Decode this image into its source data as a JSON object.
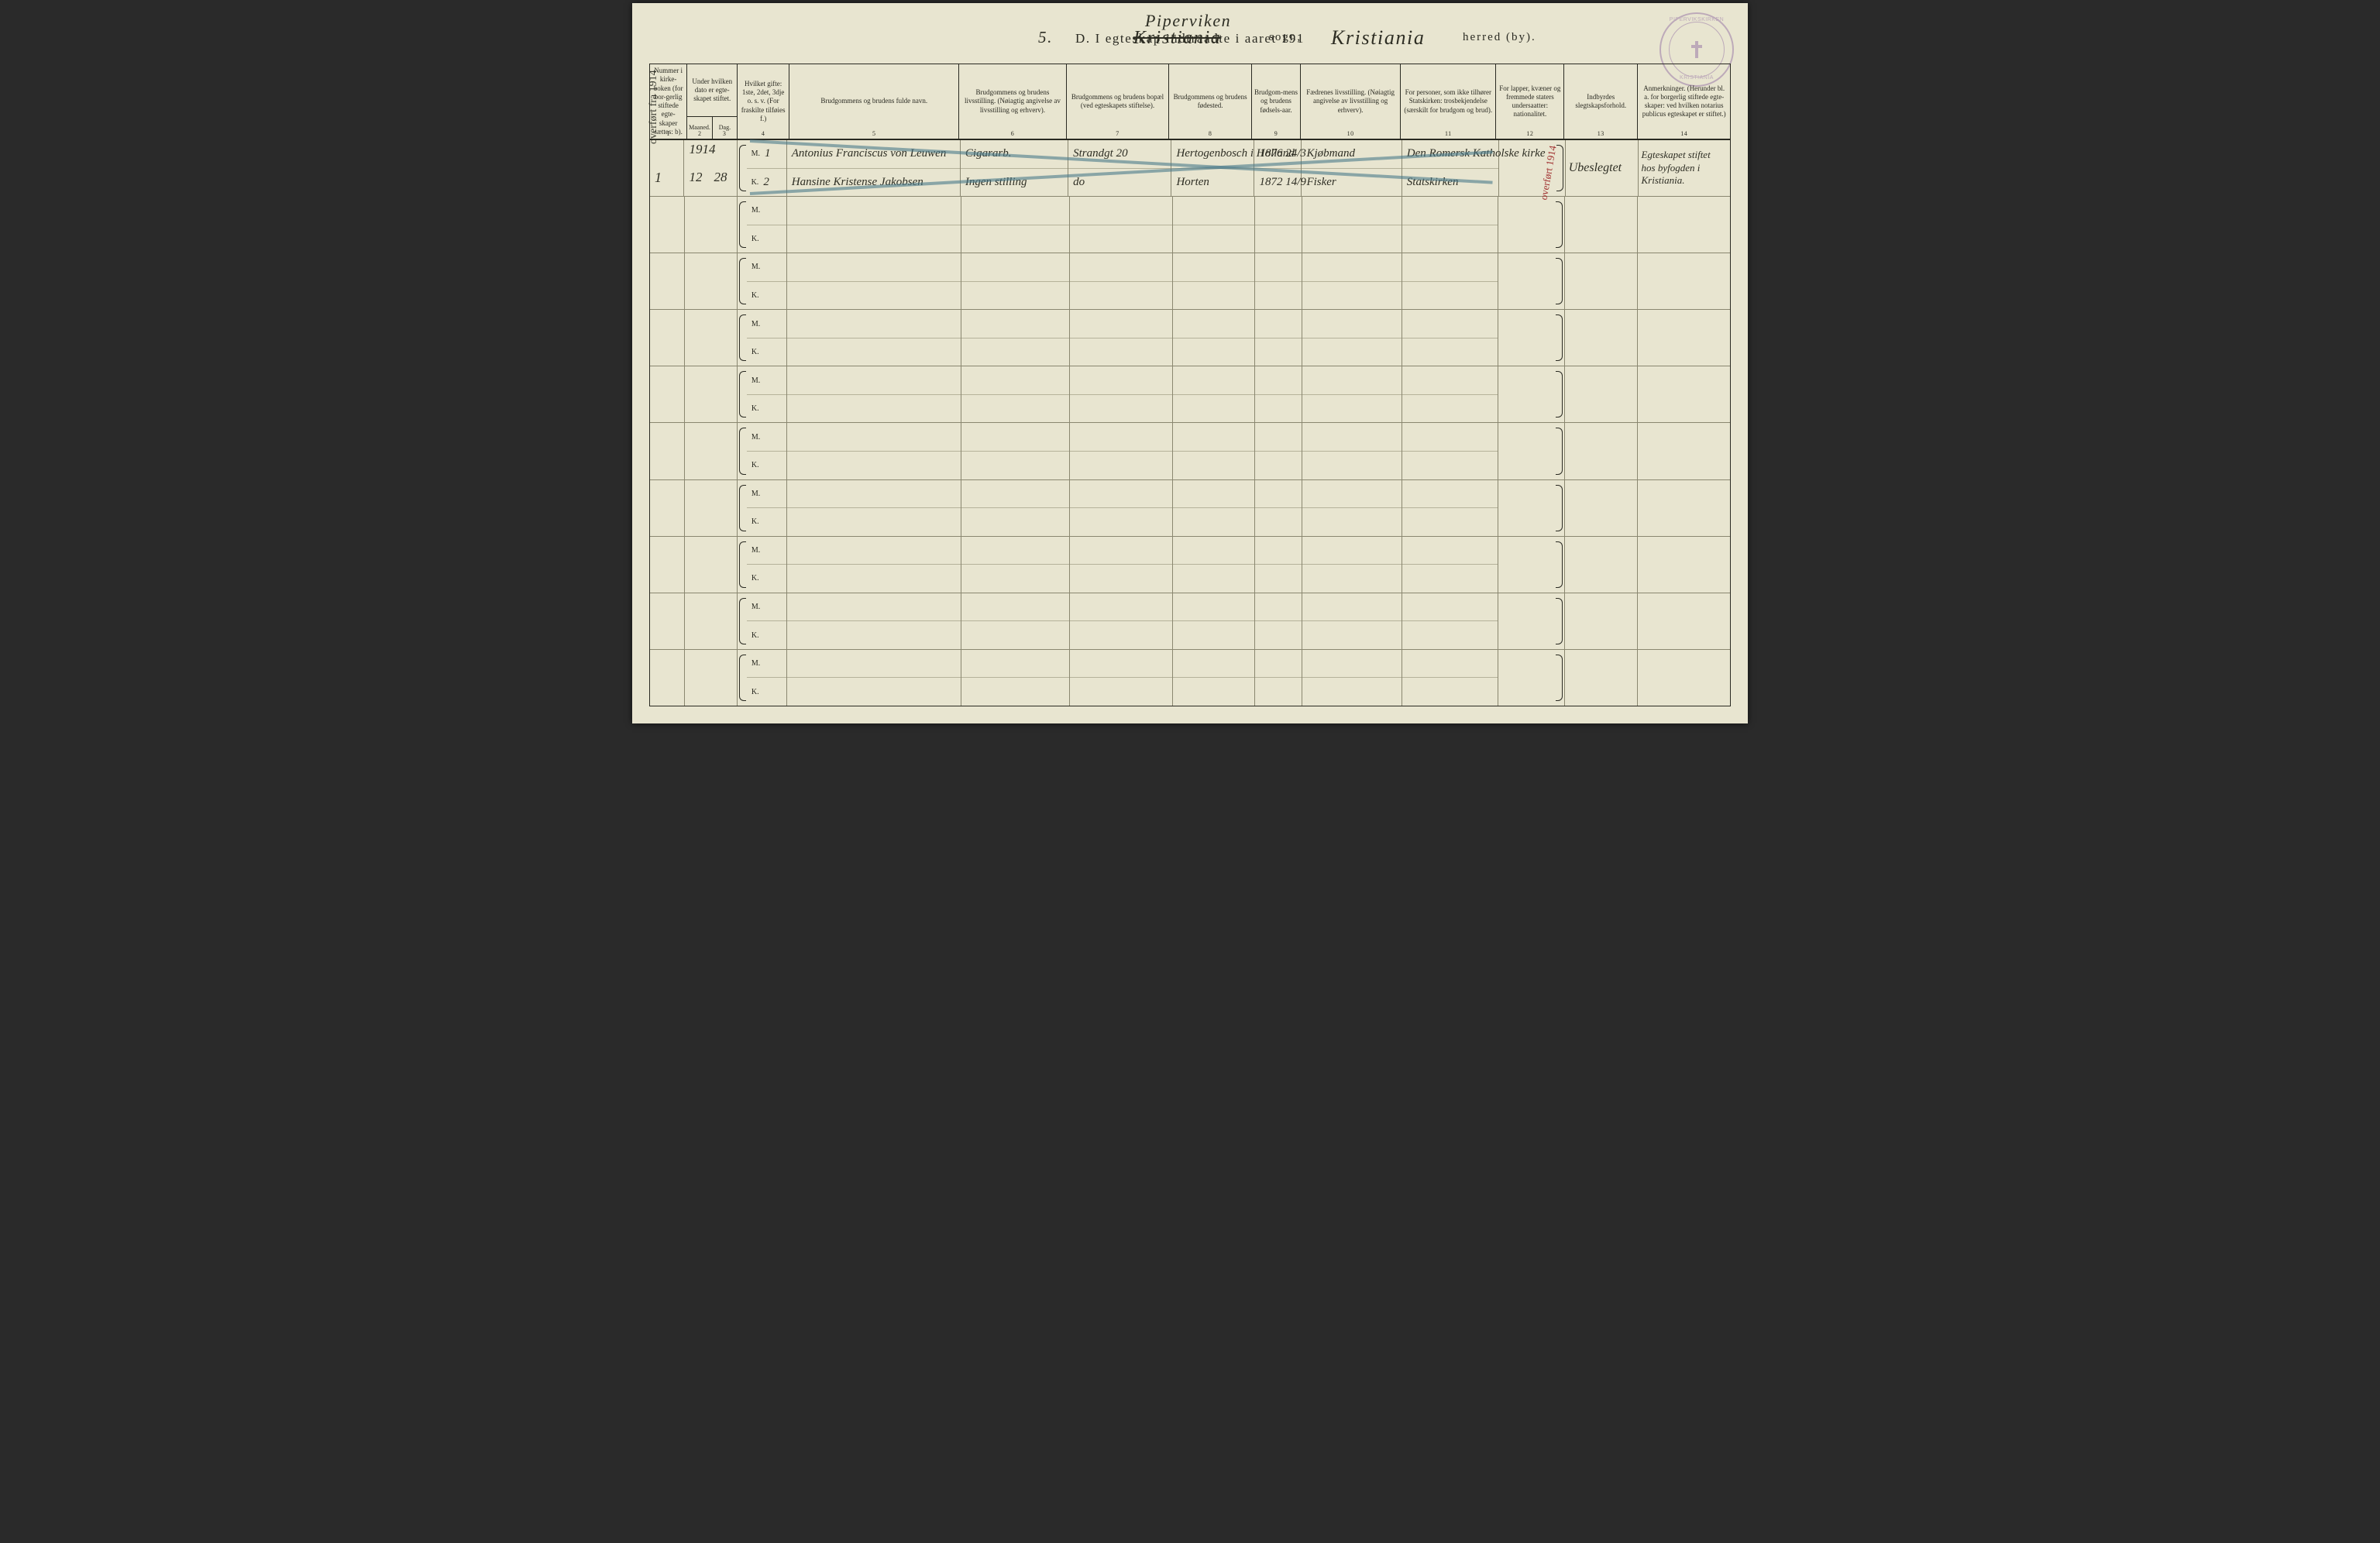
{
  "colors": {
    "paper": "#e8e5d0",
    "ink": "#2a2a22",
    "rule_light": "#8a8770",
    "strike": "#4a7a8a",
    "stamp": "#9a7aa8",
    "red_note": "#a03030"
  },
  "title": {
    "printed_prefix": "D.   I egteskap indtraadte i aaret 191",
    "year_suffix_hand": "5.",
    "parish_line1_hand": "Piperviken",
    "sogn_hand_struck": "Kristiania",
    "sogn_label": "sogn,",
    "herred_hand": "Kristiania",
    "herred_label": "herred (by)."
  },
  "stamp": {
    "top_text": "PIPERVIKSKIRKEN",
    "bottom_text": "KRISTIANIA"
  },
  "margin_note": "overført fra 1914",
  "columns": [
    {
      "num": "1",
      "label": "Nummer i kirke-boken (for bor-gerlig stiftede egte-skaper sættes: b).",
      "w": "w1"
    },
    {
      "num": "2",
      "label_top": "Under hvilken dato er egte-skapet stiftet.",
      "sub_a": "Maaned.",
      "sub_b": "Dag.",
      "w": "w2"
    },
    {
      "num": "3",
      "label": "",
      "w": "w3"
    },
    {
      "num": "4",
      "label": "Hvilket gifte: 1ste, 2det, 3dje o. s. v. (For fraskilte tilføies f.)",
      "w": "w4"
    },
    {
      "num": "5",
      "label": "Brudgommens og brudens fulde navn.",
      "w": "w5"
    },
    {
      "num": "6",
      "label": "Brudgommens og brudens livsstilling. (Nøiagtig angivelse av livsstilling og erhverv).",
      "w": "w6"
    },
    {
      "num": "7",
      "label": "Brudgommens og brudens bopæl (ved egteskapets stiftelse).",
      "w": "w7"
    },
    {
      "num": "8",
      "label": "Brudgommens og brudens fødested.",
      "w": "w8"
    },
    {
      "num": "9",
      "label": "Brudgom-mens og brudens fødsels-aar.",
      "w": "w9"
    },
    {
      "num": "10",
      "label": "Fædrenes livsstilling. (Nøiagtig angivelse av livsstilling og erhverv).",
      "w": "w10"
    },
    {
      "num": "11",
      "label": "For personer, som ikke tilhører Statskirken: trosbekjendelse (særskilt for brudgom og brud).",
      "w": "w11"
    },
    {
      "num": "12",
      "label": "For lapper, kvæner og fremmede staters undersaatter: nationalitet.",
      "w": "w12"
    },
    {
      "num": "13",
      "label": "Indbyrdes slegtskapsforhold.",
      "w": "w13"
    },
    {
      "num": "14",
      "label": "Anmerkninger. (Herunder bl. a. for borgerlig stiftede egte-skaper: ved hvilken notarius publicus egteskapet er stiftet.)",
      "w": "w14"
    }
  ],
  "mk_labels": {
    "m": "M.",
    "k": "K."
  },
  "row_count": 10,
  "filled_row": {
    "col1": "1",
    "col2_year_above": "1914",
    "col2_month": "12",
    "col3_day": "28",
    "col4_m": "1",
    "col4_k": "2",
    "col5_m": "Antonius Franciscus von Leuwen",
    "col5_k": "Hansine Kristense Jakobsen",
    "col6_m": "Cigararb.",
    "col6_k": "Ingen stilling",
    "col7_m": "Strandgt 20",
    "col7_k": "do",
    "col8_m": "Hertogenbosch i Holland",
    "col8_k": "Horten",
    "col9_m": "1876 24/3",
    "col9_k": "1872 14/9",
    "col10_m": "Kjøbmand",
    "col10_k": "Fisker",
    "col11_m": "Den Romersk Katholske kirke",
    "col11_k": "Statskirken",
    "col12_red_note": "overført 1914",
    "col13": "Ubeslegtet",
    "col14_line1": "Egteskapet stiftet",
    "col14_line2": "hos byfogden i",
    "col14_line3": "Kristiania."
  }
}
